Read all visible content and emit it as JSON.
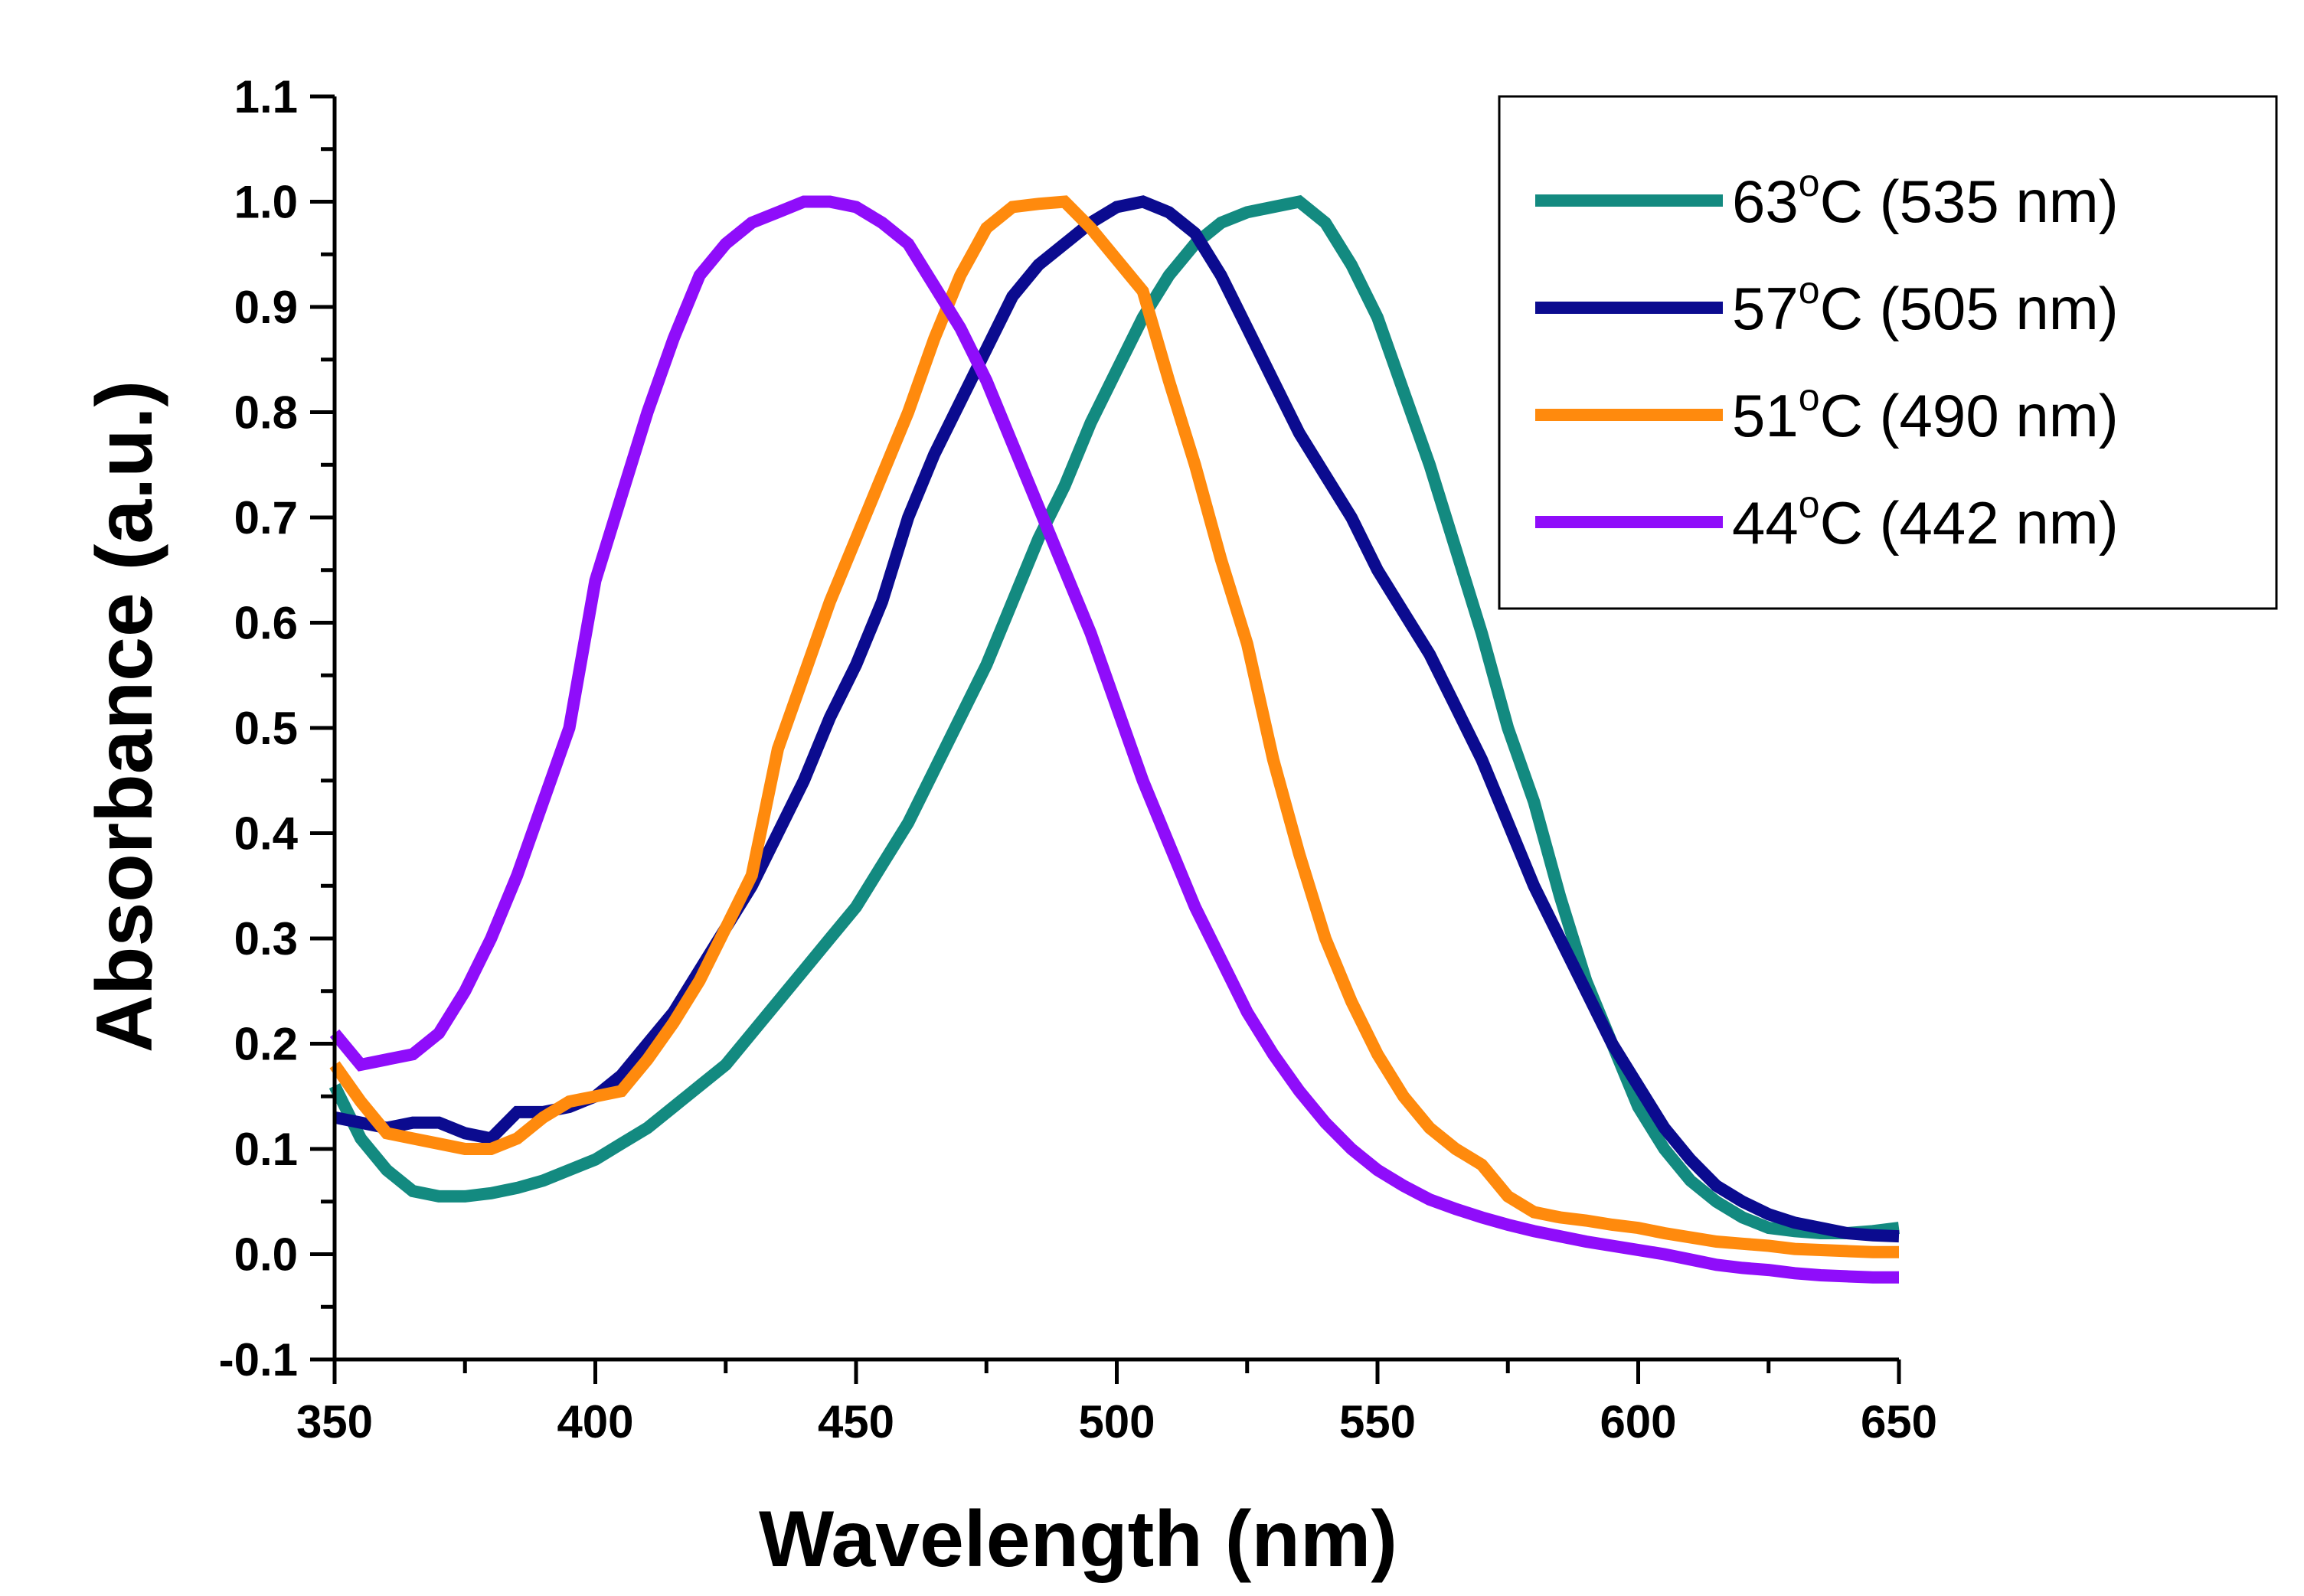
{
  "chart_data": {
    "type": "line",
    "title": "",
    "xlabel": "Wavelength (nm)",
    "ylabel": "Absorbance (a.u.)",
    "xlim": [
      350,
      650
    ],
    "ylim": [
      -0.1,
      1.1
    ],
    "x_ticks": [
      350,
      400,
      450,
      500,
      550,
      600,
      650
    ],
    "x_tick_labels": [
      "350",
      "400",
      "450",
      "500",
      "550",
      "600",
      "650"
    ],
    "y_ticks": [
      -0.1,
      0.0,
      0.1,
      0.2,
      0.3,
      0.4,
      0.5,
      0.6,
      0.7,
      0.8,
      0.9,
      1.0,
      1.1
    ],
    "y_tick_labels": [
      "-0.1",
      "0.0",
      "0.1",
      "0.2",
      "0.3",
      "0.4",
      "0.5",
      "0.6",
      "0.7",
      "0.8",
      "0.9",
      "1.0",
      "1.1"
    ],
    "grid": false,
    "legend_position": "top-right",
    "series": [
      {
        "name": "63°C (535 nm)",
        "temp": "63",
        "unit": "C",
        "peak": "(535 nm)",
        "color": "#138a80",
        "x": [
          350,
          355,
          360,
          365,
          370,
          375,
          380,
          385,
          390,
          395,
          400,
          405,
          410,
          415,
          420,
          425,
          430,
          435,
          440,
          445,
          450,
          455,
          460,
          465,
          470,
          475,
          480,
          485,
          490,
          495,
          500,
          505,
          510,
          515,
          520,
          525,
          530,
          535,
          540,
          545,
          550,
          555,
          560,
          565,
          570,
          575,
          580,
          585,
          590,
          595,
          600,
          605,
          610,
          615,
          620,
          625,
          630,
          635,
          640,
          645,
          650
        ],
        "y": [
          0.16,
          0.11,
          0.08,
          0.06,
          0.055,
          0.055,
          0.058,
          0.063,
          0.07,
          0.08,
          0.09,
          0.105,
          0.12,
          0.14,
          0.16,
          0.18,
          0.21,
          0.24,
          0.27,
          0.3,
          0.33,
          0.37,
          0.41,
          0.46,
          0.51,
          0.56,
          0.62,
          0.68,
          0.73,
          0.79,
          0.84,
          0.89,
          0.93,
          0.96,
          0.98,
          0.99,
          0.995,
          1.0,
          0.98,
          0.94,
          0.89,
          0.82,
          0.75,
          0.67,
          0.59,
          0.5,
          0.43,
          0.34,
          0.26,
          0.2,
          0.14,
          0.1,
          0.07,
          0.05,
          0.035,
          0.025,
          0.022,
          0.02,
          0.02,
          0.022,
          0.025
        ]
      },
      {
        "name": "57°C (505 nm)",
        "temp": "57",
        "unit": "C",
        "peak": "(505 nm)",
        "color": "#0b0b8f",
        "x": [
          350,
          355,
          360,
          365,
          370,
          375,
          380,
          385,
          390,
          395,
          400,
          405,
          410,
          415,
          420,
          425,
          430,
          435,
          440,
          445,
          450,
          455,
          460,
          465,
          470,
          475,
          480,
          485,
          490,
          495,
          500,
          505,
          510,
          515,
          520,
          525,
          530,
          535,
          540,
          545,
          550,
          555,
          560,
          565,
          570,
          575,
          580,
          585,
          590,
          595,
          600,
          605,
          610,
          615,
          620,
          625,
          630,
          635,
          640,
          645,
          650
        ],
        "y": [
          0.13,
          0.125,
          0.12,
          0.125,
          0.125,
          0.115,
          0.11,
          0.135,
          0.135,
          0.14,
          0.15,
          0.17,
          0.2,
          0.23,
          0.27,
          0.31,
          0.35,
          0.4,
          0.45,
          0.51,
          0.56,
          0.62,
          0.7,
          0.76,
          0.81,
          0.86,
          0.91,
          0.94,
          0.96,
          0.98,
          0.995,
          1.0,
          0.99,
          0.97,
          0.93,
          0.88,
          0.83,
          0.78,
          0.74,
          0.7,
          0.65,
          0.61,
          0.57,
          0.52,
          0.47,
          0.41,
          0.35,
          0.3,
          0.25,
          0.2,
          0.16,
          0.12,
          0.09,
          0.065,
          0.05,
          0.038,
          0.03,
          0.025,
          0.02,
          0.018,
          0.017
        ]
      },
      {
        "name": "51°C (490 nm)",
        "temp": "51",
        "unit": "C",
        "peak": "(490 nm)",
        "color": "#ff8a0d",
        "x": [
          350,
          355,
          360,
          365,
          370,
          375,
          380,
          385,
          390,
          395,
          400,
          405,
          410,
          415,
          420,
          425,
          430,
          435,
          440,
          445,
          450,
          455,
          460,
          465,
          470,
          475,
          480,
          485,
          490,
          495,
          500,
          505,
          510,
          515,
          520,
          525,
          530,
          535,
          540,
          545,
          550,
          555,
          560,
          565,
          570,
          575,
          580,
          585,
          590,
          595,
          600,
          605,
          610,
          615,
          620,
          625,
          630,
          635,
          640,
          645,
          650
        ],
        "y": [
          0.18,
          0.145,
          0.115,
          0.11,
          0.105,
          0.1,
          0.1,
          0.11,
          0.13,
          0.145,
          0.15,
          0.155,
          0.185,
          0.22,
          0.26,
          0.31,
          0.36,
          0.48,
          0.55,
          0.62,
          0.68,
          0.74,
          0.8,
          0.87,
          0.93,
          0.975,
          0.995,
          0.998,
          1.0,
          0.975,
          0.945,
          0.915,
          0.83,
          0.75,
          0.66,
          0.58,
          0.47,
          0.38,
          0.3,
          0.24,
          0.19,
          0.15,
          0.12,
          0.1,
          0.085,
          0.055,
          0.04,
          0.035,
          0.032,
          0.028,
          0.025,
          0.02,
          0.016,
          0.012,
          0.01,
          0.008,
          0.005,
          0.004,
          0.003,
          0.002,
          0.002
        ]
      },
      {
        "name": "44°C (442 nm)",
        "temp": "44",
        "unit": "C",
        "peak": "(442 nm)",
        "color": "#8f0dfa",
        "x": [
          350,
          355,
          360,
          365,
          370,
          375,
          380,
          385,
          390,
          395,
          400,
          405,
          410,
          415,
          420,
          425,
          430,
          435,
          440,
          445,
          450,
          455,
          460,
          465,
          470,
          475,
          480,
          485,
          490,
          495,
          500,
          505,
          510,
          515,
          520,
          525,
          530,
          535,
          540,
          545,
          550,
          555,
          560,
          565,
          570,
          575,
          580,
          585,
          590,
          595,
          600,
          605,
          610,
          615,
          620,
          625,
          630,
          635,
          640,
          645,
          650
        ],
        "y": [
          0.21,
          0.18,
          0.185,
          0.19,
          0.21,
          0.25,
          0.3,
          0.36,
          0.43,
          0.5,
          0.64,
          0.72,
          0.8,
          0.87,
          0.93,
          0.96,
          0.98,
          0.99,
          1.0,
          1.0,
          0.995,
          0.98,
          0.96,
          0.92,
          0.88,
          0.83,
          0.77,
          0.71,
          0.65,
          0.59,
          0.52,
          0.45,
          0.39,
          0.33,
          0.28,
          0.23,
          0.19,
          0.155,
          0.125,
          0.1,
          0.08,
          0.065,
          0.052,
          0.043,
          0.035,
          0.028,
          0.022,
          0.017,
          0.012,
          0.008,
          0.004,
          0.0,
          -0.005,
          -0.01,
          -0.013,
          -0.015,
          -0.018,
          -0.02,
          -0.021,
          -0.022,
          -0.022
        ]
      }
    ]
  }
}
